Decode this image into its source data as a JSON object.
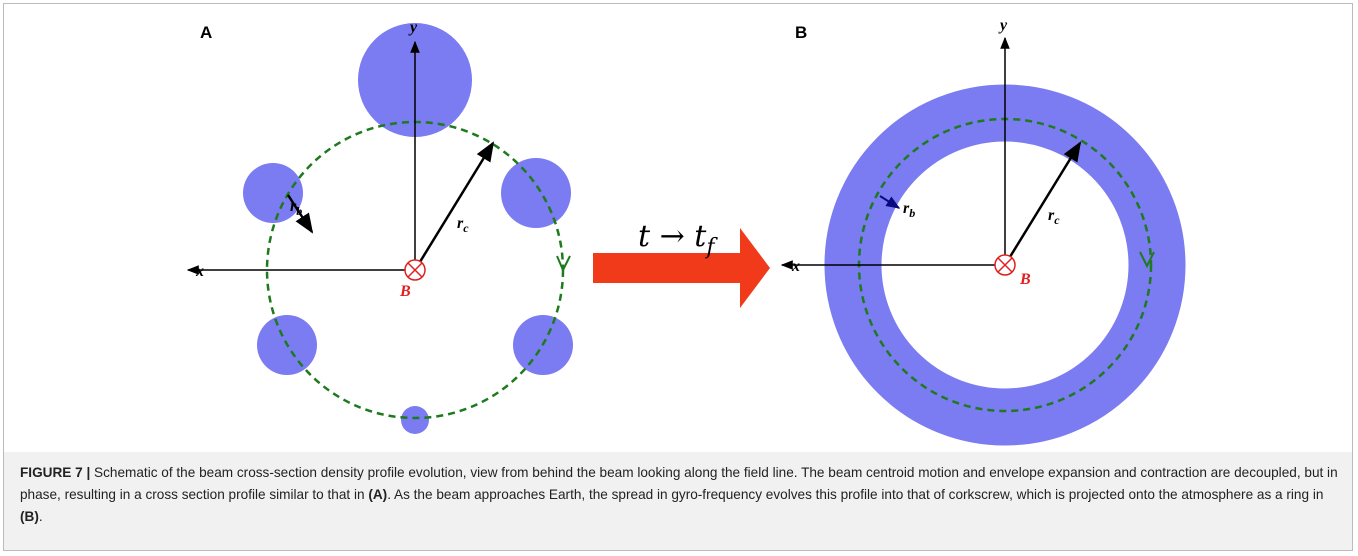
{
  "panel_a": {
    "label": "A",
    "axis_x": "x",
    "axis_y": "y",
    "field": "B",
    "r_b": {
      "main": "r",
      "sub": "b"
    },
    "r_c": {
      "main": "r",
      "sub": "c"
    }
  },
  "panel_b": {
    "label": "B",
    "axis_x": "x",
    "axis_y": "y",
    "field": "B",
    "r_b": {
      "main": "r",
      "sub": "b"
    },
    "r_c": {
      "main": "r",
      "sub": "c"
    }
  },
  "arrow_label": {
    "main": "t → t",
    "sub": "f"
  },
  "caption": {
    "figure": "FIGURE 7 |",
    "text1": " Schematic of the beam cross-section density profile evolution, view from behind the beam looking along the field line. The beam centroid motion and envelope expansion and contraction are decoupled, but in phase, resulting in a cross section profile similar to that in ",
    "ref_a": "(A)",
    "text2": ". As the beam approaches Earth, the spread in gyro-frequency evolves this profile into that of corkscrew, which is projected onto the atmosphere as a ring in ",
    "ref_b": "(B)",
    "text3": "."
  }
}
